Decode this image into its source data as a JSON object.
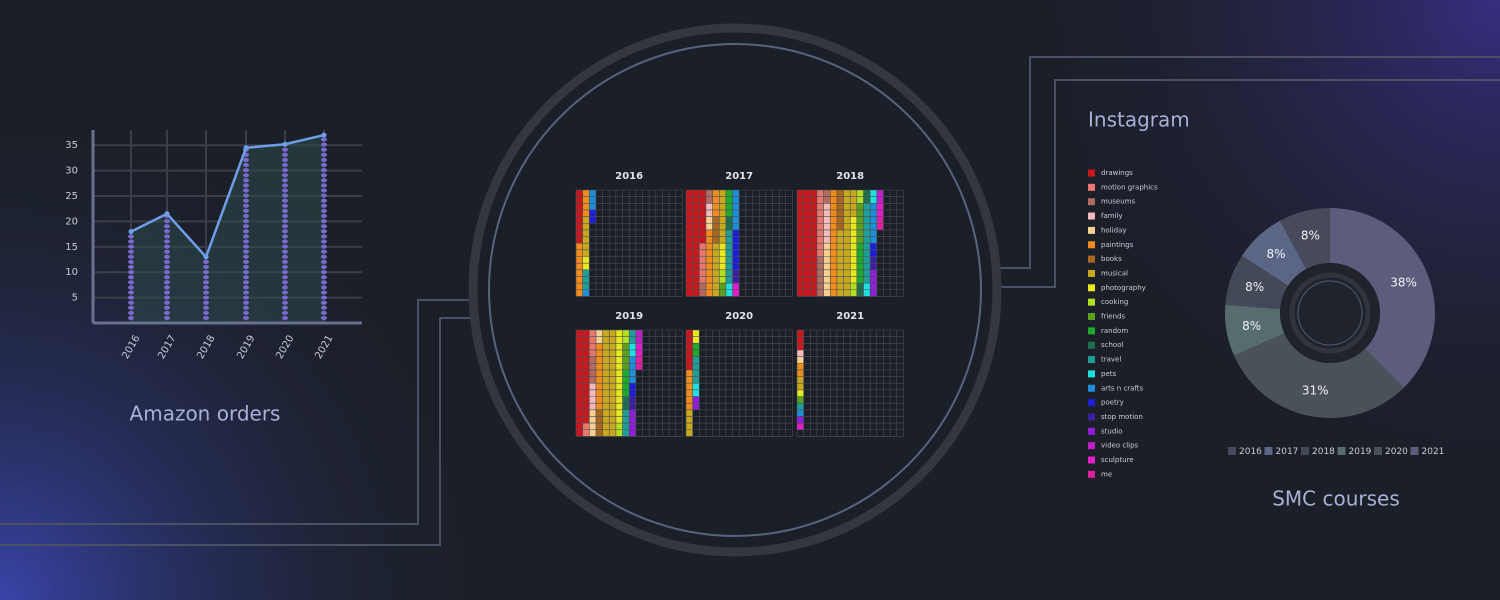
{
  "chart_data": [
    {
      "type": "line",
      "title": "Amazon orders",
      "categories": [
        "2016",
        "2017",
        "2018",
        "2019",
        "2020",
        "2021"
      ],
      "values": [
        18,
        21.5,
        13,
        34.5,
        35.2,
        37
      ],
      "color": "#6f9ee8",
      "area_color": "#2c4a4c",
      "dot_color": "#7a6ad0",
      "ylim": [
        0,
        38
      ],
      "yticks": [
        5,
        10,
        15,
        20,
        25,
        30,
        35
      ],
      "grid": true
    },
    {
      "type": "waffle",
      "title": "Instagram",
      "categories": [
        "2016",
        "2017",
        "2018",
        "2019",
        "2020",
        "2021"
      ],
      "series": [
        {
          "name": "drawings",
          "color": "#c8181e",
          "values": [
            8,
            40,
            48,
            30,
            6,
            3
          ]
        },
        {
          "name": "motion graphics",
          "color": "#e8786e",
          "values": [
            0,
            6,
            10,
            6,
            0,
            0
          ]
        },
        {
          "name": "museums",
          "color": "#b06c62",
          "values": [
            0,
            4,
            8,
            4,
            0,
            0
          ]
        },
        {
          "name": "family",
          "color": "#f2baba",
          "values": [
            0,
            2,
            6,
            4,
            0,
            1
          ]
        },
        {
          "name": "holiday",
          "color": "#f5d090",
          "values": [
            0,
            2,
            8,
            6,
            0,
            1
          ]
        },
        {
          "name": "paintings",
          "color": "#f08c1c",
          "values": [
            12,
            14,
            16,
            10,
            6,
            2
          ]
        },
        {
          "name": "books",
          "color": "#a8661e",
          "values": [
            0,
            4,
            6,
            4,
            0,
            0
          ]
        },
        {
          "name": "musical",
          "color": "#c8a81c",
          "values": [
            6,
            16,
            30,
            32,
            4,
            2
          ]
        },
        {
          "name": "photography",
          "color": "#e8e81e",
          "values": [
            2,
            4,
            10,
            14,
            2,
            1
          ]
        },
        {
          "name": "cooking",
          "color": "#b0e01e",
          "values": [
            0,
            2,
            4,
            4,
            0,
            0
          ]
        },
        {
          "name": "friends",
          "color": "#5aa01e",
          "values": [
            0,
            2,
            6,
            4,
            0,
            1
          ]
        },
        {
          "name": "random",
          "color": "#1eaa2c",
          "values": [
            0,
            4,
            6,
            4,
            2,
            0
          ]
        },
        {
          "name": "school",
          "color": "#1e6e50",
          "values": [
            0,
            2,
            4,
            2,
            0,
            0
          ]
        },
        {
          "name": "travel",
          "color": "#1e9e96",
          "values": [
            3,
            8,
            12,
            6,
            4,
            1
          ]
        },
        {
          "name": "pets",
          "color": "#1ee0e0",
          "values": [
            0,
            2,
            4,
            2,
            2,
            0
          ]
        },
        {
          "name": "arts n crafts",
          "color": "#1e8ed8",
          "values": [
            4,
            6,
            6,
            4,
            0,
            1
          ]
        },
        {
          "name": "poetry",
          "color": "#1e1ed8",
          "values": [
            2,
            6,
            2,
            2,
            0,
            0
          ]
        },
        {
          "name": "stop motion",
          "color": "#3e1ea0",
          "values": [
            0,
            2,
            2,
            2,
            0,
            0
          ]
        },
        {
          "name": "studio",
          "color": "#8e1ed8",
          "values": [
            0,
            0,
            4,
            4,
            2,
            1
          ]
        },
        {
          "name": "video clips",
          "color": "#c01ec8",
          "values": [
            0,
            0,
            2,
            2,
            0,
            0
          ]
        },
        {
          "name": "sculpture",
          "color": "#e01ec8",
          "values": [
            0,
            2,
            2,
            2,
            0,
            1
          ]
        },
        {
          "name": "me",
          "color": "#e01e9e",
          "values": [
            0,
            0,
            2,
            2,
            0,
            0
          ]
        }
      ]
    },
    {
      "type": "donut",
      "title": "SMC courses",
      "categories": [
        "2016",
        "2017",
        "2018",
        "2019",
        "2020",
        "2021"
      ],
      "values": [
        8,
        8,
        8,
        8,
        31,
        38
      ],
      "value_labels": [
        "8%",
        "8%",
        "8%",
        "8%",
        "31%",
        "38%"
      ],
      "colors": [
        "#474a5a",
        "#5b6585",
        "#444957",
        "#566c6e",
        "#4b5159",
        "#5c5c7c"
      ],
      "direction": "counterclockwise"
    }
  ]
}
